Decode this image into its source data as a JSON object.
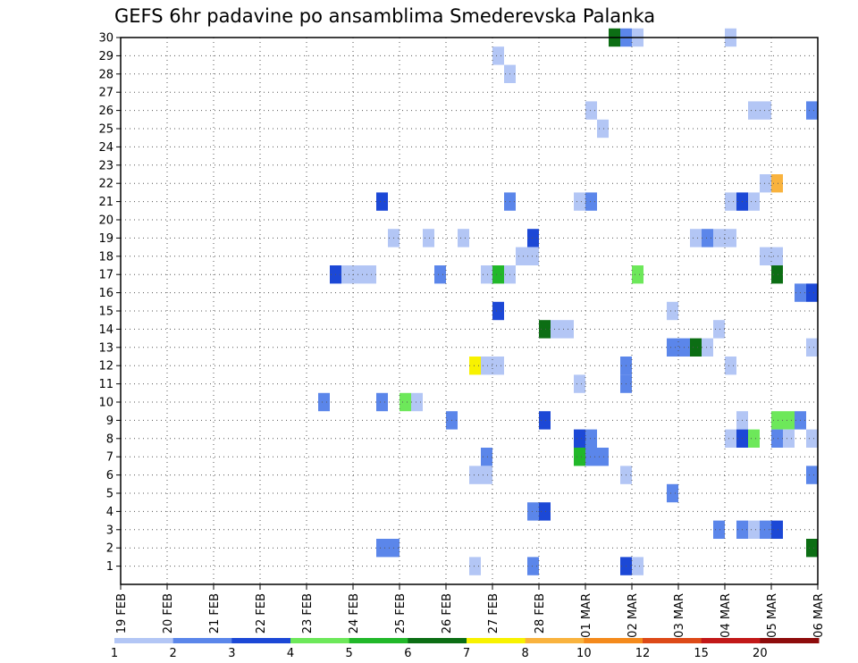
{
  "chart_data": {
    "type": "heatmap",
    "title": "GEFS 6hr padavine po ansamblima Smederevska Palanka",
    "xlabel": "",
    "ylabel": "",
    "x_range_days": [
      0,
      15
    ],
    "y_range": [
      0,
      30
    ],
    "steps_per_day": 4,
    "x_tick_labels": [
      "19 FEB",
      "20 FEB",
      "21 FEB",
      "22 FEB",
      "23 FEB",
      "24 FEB",
      "25 FEB",
      "26 FEB",
      "27 FEB",
      "28 FEB",
      "01 MAR",
      "02 MAR",
      "03 MAR",
      "04 MAR",
      "05 MAR",
      "06 MAR"
    ],
    "y_tick_labels": [
      "1",
      "2",
      "3",
      "4",
      "5",
      "6",
      "7",
      "8",
      "9",
      "10",
      "11",
      "12",
      "13",
      "14",
      "15",
      "16",
      "17",
      "18",
      "19",
      "20",
      "21",
      "22",
      "23",
      "24",
      "25",
      "26",
      "27",
      "28",
      "29",
      "30"
    ],
    "grid": "dotted",
    "colorbar": {
      "labels": [
        "1",
        "2",
        "3",
        "4",
        "5",
        "6",
        "7",
        "8",
        "10",
        "12",
        "15",
        "20"
      ],
      "colors": [
        "#b3c6f5",
        "#5b86ea",
        "#1c48d6",
        "#6de85a",
        "#22b82a",
        "#0c6e14",
        "#f8f200",
        "#f9b33e",
        "#f48a1c",
        "#dd4a18",
        "#c21818",
        "#8e0c0c"
      ]
    },
    "cells": [
      [
        42,
        30,
        5
      ],
      [
        43,
        30,
        1
      ],
      [
        44,
        30,
        0
      ],
      [
        52,
        30,
        0
      ],
      [
        32,
        29,
        0
      ],
      [
        33,
        28,
        0
      ],
      [
        40,
        26,
        0
      ],
      [
        54,
        26,
        0
      ],
      [
        55,
        26,
        0
      ],
      [
        59,
        26,
        1
      ],
      [
        41,
        25,
        0
      ],
      [
        55,
        22,
        0
      ],
      [
        56,
        22,
        7
      ],
      [
        22,
        21,
        2
      ],
      [
        33,
        21,
        1
      ],
      [
        39,
        21,
        0
      ],
      [
        40,
        21,
        1
      ],
      [
        52,
        21,
        0
      ],
      [
        53,
        21,
        2
      ],
      [
        54,
        21,
        0
      ],
      [
        23,
        19,
        0
      ],
      [
        26,
        19,
        0
      ],
      [
        29,
        19,
        0
      ],
      [
        35,
        19,
        2
      ],
      [
        49,
        19,
        0
      ],
      [
        50,
        19,
        1
      ],
      [
        51,
        19,
        0
      ],
      [
        52,
        19,
        0
      ],
      [
        34,
        18,
        0
      ],
      [
        35,
        18,
        0
      ],
      [
        55,
        18,
        0
      ],
      [
        56,
        18,
        0
      ],
      [
        18,
        17,
        2
      ],
      [
        19,
        17,
        0
      ],
      [
        20,
        17,
        0
      ],
      [
        21,
        17,
        0
      ],
      [
        27,
        17,
        1
      ],
      [
        31,
        17,
        0
      ],
      [
        32,
        17,
        4
      ],
      [
        33,
        17,
        0
      ],
      [
        44,
        17,
        3
      ],
      [
        56,
        17,
        5
      ],
      [
        58,
        16,
        1
      ],
      [
        59,
        16,
        2
      ],
      [
        32,
        15,
        2
      ],
      [
        47,
        15,
        0
      ],
      [
        36,
        14,
        5
      ],
      [
        37,
        14,
        0
      ],
      [
        38,
        14,
        0
      ],
      [
        51,
        14,
        0
      ],
      [
        47,
        13,
        1
      ],
      [
        48,
        13,
        1
      ],
      [
        49,
        13,
        5
      ],
      [
        50,
        13,
        0
      ],
      [
        59,
        13,
        0
      ],
      [
        30,
        12,
        6
      ],
      [
        31,
        12,
        0
      ],
      [
        32,
        12,
        0
      ],
      [
        43,
        12,
        1
      ],
      [
        52,
        12,
        0
      ],
      [
        43,
        11,
        1
      ],
      [
        39,
        11,
        0
      ],
      [
        17,
        10,
        1
      ],
      [
        22,
        10,
        1
      ],
      [
        24,
        10,
        3
      ],
      [
        25,
        10,
        0
      ],
      [
        28,
        9,
        1
      ],
      [
        36,
        9,
        2
      ],
      [
        53,
        9,
        0
      ],
      [
        56,
        9,
        3
      ],
      [
        57,
        9,
        3
      ],
      [
        58,
        9,
        1
      ],
      [
        39,
        8,
        2
      ],
      [
        40,
        8,
        1
      ],
      [
        52,
        8,
        0
      ],
      [
        53,
        8,
        2
      ],
      [
        54,
        8,
        3
      ],
      [
        56,
        8,
        1
      ],
      [
        57,
        8,
        0
      ],
      [
        59,
        8,
        0
      ],
      [
        31,
        7,
        1
      ],
      [
        39,
        7,
        4
      ],
      [
        40,
        7,
        1
      ],
      [
        41,
        7,
        1
      ],
      [
        30,
        6,
        0
      ],
      [
        31,
        6,
        0
      ],
      [
        43,
        6,
        0
      ],
      [
        59,
        6,
        1
      ],
      [
        47,
        5,
        1
      ],
      [
        35,
        4,
        1
      ],
      [
        36,
        4,
        2
      ],
      [
        51,
        3,
        1
      ],
      [
        53,
        3,
        1
      ],
      [
        54,
        3,
        0
      ],
      [
        55,
        3,
        1
      ],
      [
        56,
        3,
        2
      ],
      [
        22,
        2,
        1
      ],
      [
        23,
        2,
        1
      ],
      [
        59,
        2,
        5
      ],
      [
        30,
        1,
        0
      ],
      [
        35,
        1,
        1
      ],
      [
        43,
        1,
        2
      ],
      [
        44,
        1,
        0
      ]
    ]
  }
}
